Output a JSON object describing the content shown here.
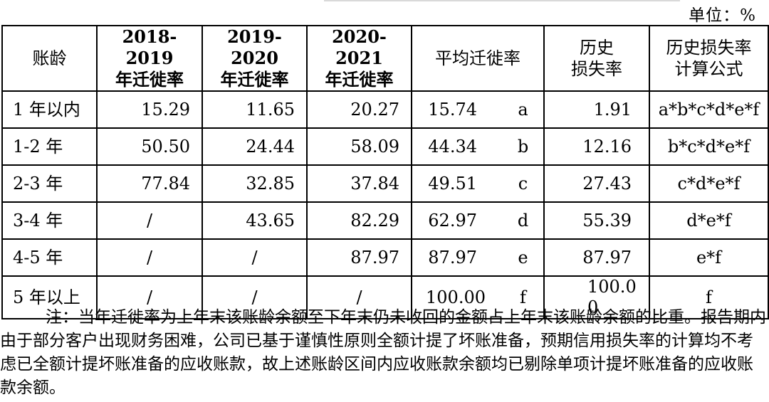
{
  "unit_label": "单位：%",
  "table": {
    "headers": [
      [
        "账龄"
      ],
      [
        "2018-2019",
        "年迁徙率"
      ],
      [
        "2019-2020",
        "年迁徙率"
      ],
      [
        "2020-2021",
        "年迁徙率"
      ],
      [
        "平均迁徙率"
      ],
      [
        "历史",
        "损失率"
      ],
      [
        "历史损失率",
        "计算公式"
      ]
    ],
    "rows": [
      {
        "aging": "1 年以内",
        "r2019": "15.29",
        "r2020": "11.65",
        "r2021": "20.27",
        "avg": "15.74",
        "letter": "a",
        "hist_loss": "1.91",
        "formula": "a*b*c*d*e*f"
      },
      {
        "aging": "1-2 年",
        "r2019": "50.50",
        "r2020": "24.44",
        "r2021": "58.09",
        "avg": "44.34",
        "letter": "b",
        "hist_loss": "12.16",
        "formula": "b*c*d*e*f"
      },
      {
        "aging": "2-3 年",
        "r2019": "77.84",
        "r2020": "32.85",
        "r2021": "37.84",
        "avg": "49.51",
        "letter": "c",
        "hist_loss": "27.43",
        "formula": "c*d*e*f"
      },
      {
        "aging": "3-4 年",
        "r2019": "/",
        "r2020": "43.65",
        "r2021": "82.29",
        "avg": "62.97",
        "letter": "d",
        "hist_loss": "55.39",
        "formula": "d*e*f"
      },
      {
        "aging": "4-5 年",
        "r2019": "/",
        "r2020": "/",
        "r2021": "87.97",
        "avg": "87.97",
        "letter": "e",
        "hist_loss": "87.97",
        "formula": "e*f"
      },
      {
        "aging": "5 年以上",
        "r2019": "/",
        "r2020": "/",
        "r2021": "/",
        "avg": "100.00",
        "letter": "f",
        "hist_loss_line1": "100.0",
        "hist_loss_line2": "0",
        "formula": "f"
      }
    ]
  },
  "note": "注：当年迁徙率为上年末该账龄余额至下年末仍未收回的金额占上年末该账龄余额的比重。报告期内由于部分客户出现财务困难，公司已基于谨慎性原则全额计提了坏账准备，预期信用损失率的计算均不考虑已全额计提坏账准备的应收账款，故上述账龄区间内应收账款余额均已剔除单项计提坏账准备的应收账款余额。"
}
